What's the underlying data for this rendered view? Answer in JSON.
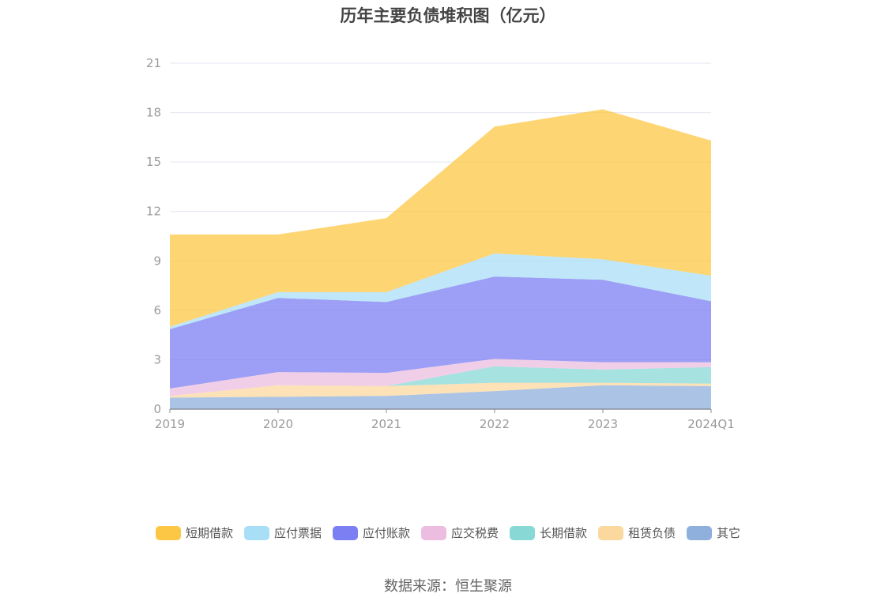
{
  "title": "历年主要负债堆积图（亿元）",
  "source": "数据来源：恒生聚源",
  "chart_data": {
    "type": "area",
    "stacked": true,
    "title": "历年主要负债堆积图（亿元）",
    "xlabel": "",
    "ylabel": "",
    "categories": [
      "2019",
      "2020",
      "2021",
      "2022",
      "2023",
      "2024Q1"
    ],
    "ylim": [
      0,
      21
    ],
    "yticks": [
      "0",
      "3",
      "6",
      "9",
      "12",
      "15",
      "18",
      "21"
    ],
    "grid": true,
    "legend_position": "bottom",
    "series": [
      {
        "name": "其它",
        "color": "#8fb0dc",
        "values": [
          0.7,
          0.75,
          0.8,
          1.1,
          1.45,
          1.4
        ]
      },
      {
        "name": "租赁负债",
        "color": "#fbd89e",
        "values": [
          0.1,
          0.7,
          0.6,
          0.5,
          0.15,
          0.15
        ]
      },
      {
        "name": "长期借款",
        "color": "#88d8d6",
        "values": [
          0.0,
          0.0,
          0.0,
          1.0,
          0.8,
          1.0
        ]
      },
      {
        "name": "应交税费",
        "color": "#ecbde0",
        "values": [
          0.45,
          0.8,
          0.8,
          0.45,
          0.45,
          0.3
        ]
      },
      {
        "name": "应付账款",
        "color": "#7b7ff2",
        "values": [
          3.6,
          4.5,
          4.3,
          5.0,
          5.0,
          3.7
        ]
      },
      {
        "name": "应付票据",
        "color": "#a9def7",
        "values": [
          0.15,
          0.35,
          0.6,
          1.4,
          1.25,
          1.55
        ]
      },
      {
        "name": "短期借款",
        "color": "#fcc744",
        "values": [
          5.6,
          3.5,
          4.5,
          7.7,
          9.1,
          8.2
        ]
      }
    ]
  },
  "legend": [
    {
      "label": "短期借款",
      "color": "#fcc744"
    },
    {
      "label": "应付票据",
      "color": "#a9def7"
    },
    {
      "label": "应付账款",
      "color": "#7b7ff2"
    },
    {
      "label": "应交税费",
      "color": "#ecbde0"
    },
    {
      "label": "长期借款",
      "color": "#88d8d6"
    },
    {
      "label": "租赁负债",
      "color": "#fbd89e"
    },
    {
      "label": "其它",
      "color": "#8fb0dc"
    }
  ]
}
